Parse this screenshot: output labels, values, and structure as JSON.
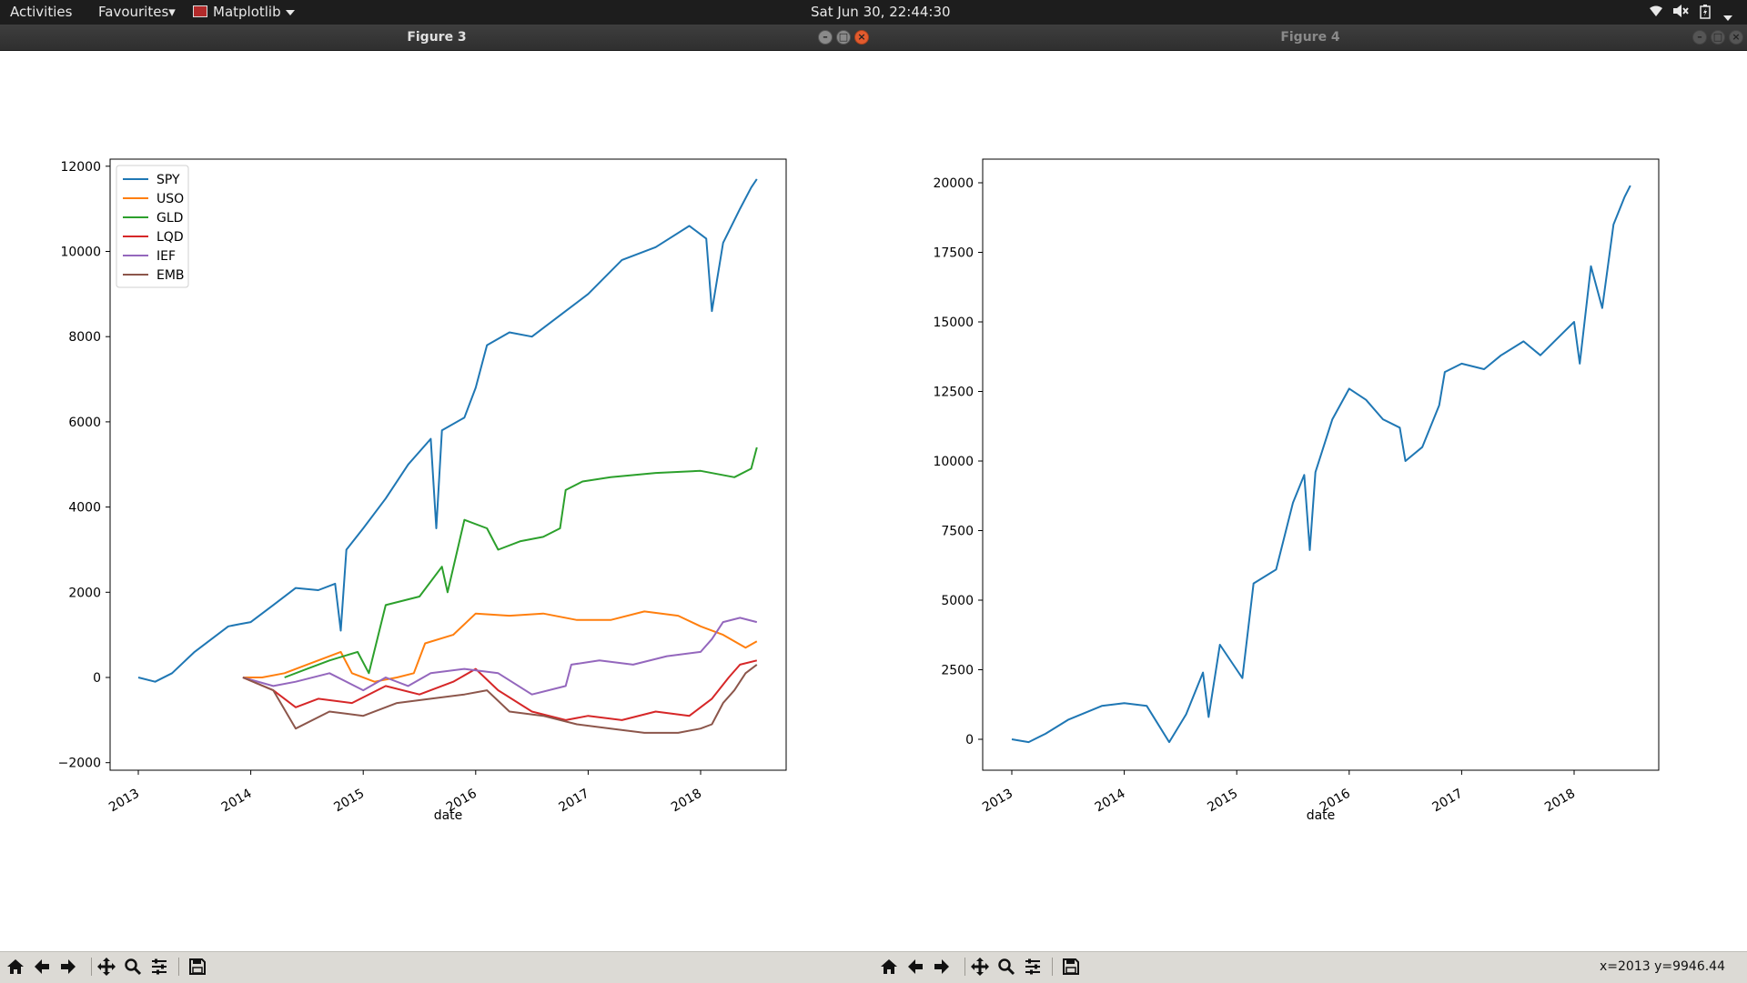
{
  "topbar": {
    "activities": "Activities",
    "favourites": "Favourites▾",
    "app_name": "Matplotlib",
    "clock": "Sat Jun 30, 22:44:30"
  },
  "windows": [
    {
      "title": "Figure 3"
    },
    {
      "title": "Figure 4"
    }
  ],
  "status": {
    "coords": "x=2013 y=9946.44"
  },
  "colors": {
    "SPY": "#1f77b4",
    "USO": "#ff7f0e",
    "GLD": "#2ca02c",
    "LQD": "#d62728",
    "IEF": "#9467bd",
    "EMB": "#8c564b"
  },
  "chart_data": [
    {
      "type": "line",
      "xlabel": "date",
      "x_ticks": [
        "2013",
        "2014",
        "2015",
        "2016",
        "2017",
        "2018"
      ],
      "ylim": [
        -2200,
        12400
      ],
      "y_ticks": [
        "−2000",
        "0",
        "2000",
        "4000",
        "6000",
        "8000",
        "10000",
        "12000"
      ],
      "y_tick_values": [
        -2000,
        0,
        2000,
        4000,
        6000,
        8000,
        10000,
        12000
      ],
      "legend_position": "top-left",
      "series": [
        {
          "name": "SPY",
          "color": "#1f77b4",
          "points": [
            [
              2013.0,
              0
            ],
            [
              2013.15,
              -100
            ],
            [
              2013.3,
              100
            ],
            [
              2013.5,
              600
            ],
            [
              2013.8,
              1200
            ],
            [
              2013.9,
              1250
            ],
            [
              2014.0,
              1300
            ],
            [
              2014.2,
              1700
            ],
            [
              2014.4,
              2100
            ],
            [
              2014.6,
              2050
            ],
            [
              2014.75,
              2200
            ],
            [
              2014.8,
              1100
            ],
            [
              2014.85,
              3000
            ],
            [
              2015.0,
              3500
            ],
            [
              2015.2,
              4200
            ],
            [
              2015.4,
              5000
            ],
            [
              2015.6,
              5600
            ],
            [
              2015.65,
              3500
            ],
            [
              2015.7,
              5800
            ],
            [
              2015.9,
              6100
            ],
            [
              2016.0,
              6800
            ],
            [
              2016.1,
              7800
            ],
            [
              2016.3,
              8100
            ],
            [
              2016.5,
              8000
            ],
            [
              2016.8,
              8600
            ],
            [
              2017.0,
              9000
            ],
            [
              2017.3,
              9800
            ],
            [
              2017.6,
              10100
            ],
            [
              2017.9,
              10600
            ],
            [
              2018.05,
              10300
            ],
            [
              2018.1,
              8600
            ],
            [
              2018.2,
              10200
            ],
            [
              2018.35,
              11000
            ],
            [
              2018.45,
              11500
            ],
            [
              2018.5,
              11700
            ]
          ]
        },
        {
          "name": "USO",
          "color": "#ff7f0e",
          "points": [
            [
              2013.93,
              0
            ],
            [
              2014.1,
              0
            ],
            [
              2014.3,
              100
            ],
            [
              2014.5,
              300
            ],
            [
              2014.8,
              600
            ],
            [
              2014.9,
              100
            ],
            [
              2015.1,
              -100
            ],
            [
              2015.3,
              0
            ],
            [
              2015.45,
              100
            ],
            [
              2015.55,
              800
            ],
            [
              2015.8,
              1000
            ],
            [
              2016.0,
              1500
            ],
            [
              2016.3,
              1450
            ],
            [
              2016.6,
              1500
            ],
            [
              2016.9,
              1350
            ],
            [
              2017.2,
              1350
            ],
            [
              2017.5,
              1550
            ],
            [
              2017.8,
              1450
            ],
            [
              2018.0,
              1200
            ],
            [
              2018.2,
              1000
            ],
            [
              2018.4,
              700
            ],
            [
              2018.5,
              850
            ]
          ]
        },
        {
          "name": "GLD",
          "color": "#2ca02c",
          "points": [
            [
              2014.3,
              0
            ],
            [
              2014.5,
              200
            ],
            [
              2014.7,
              400
            ],
            [
              2014.95,
              600
            ],
            [
              2015.05,
              100
            ],
            [
              2015.2,
              1700
            ],
            [
              2015.5,
              1900
            ],
            [
              2015.7,
              2600
            ],
            [
              2015.75,
              2000
            ],
            [
              2015.9,
              3700
            ],
            [
              2016.1,
              3500
            ],
            [
              2016.2,
              3000
            ],
            [
              2016.4,
              3200
            ],
            [
              2016.6,
              3300
            ],
            [
              2016.75,
              3500
            ],
            [
              2016.8,
              4400
            ],
            [
              2016.95,
              4600
            ],
            [
              2017.2,
              4700
            ],
            [
              2017.6,
              4800
            ],
            [
              2018.0,
              4850
            ],
            [
              2018.3,
              4700
            ],
            [
              2018.45,
              4900
            ],
            [
              2018.5,
              5400
            ]
          ]
        },
        {
          "name": "LQD",
          "color": "#d62728",
          "points": [
            [
              2013.93,
              0
            ],
            [
              2014.2,
              -300
            ],
            [
              2014.4,
              -700
            ],
            [
              2014.6,
              -500
            ],
            [
              2014.9,
              -600
            ],
            [
              2015.2,
              -200
            ],
            [
              2015.5,
              -400
            ],
            [
              2015.8,
              -100
            ],
            [
              2016.0,
              200
            ],
            [
              2016.2,
              -300
            ],
            [
              2016.5,
              -800
            ],
            [
              2016.8,
              -1000
            ],
            [
              2017.0,
              -900
            ],
            [
              2017.3,
              -1000
            ],
            [
              2017.6,
              -800
            ],
            [
              2017.9,
              -900
            ],
            [
              2018.0,
              -700
            ],
            [
              2018.1,
              -500
            ],
            [
              2018.25,
              0
            ],
            [
              2018.35,
              300
            ],
            [
              2018.5,
              400
            ]
          ]
        },
        {
          "name": "IEF",
          "color": "#9467bd",
          "points": [
            [
              2013.93,
              0
            ],
            [
              2014.2,
              -200
            ],
            [
              2014.4,
              -100
            ],
            [
              2014.7,
              100
            ],
            [
              2015.0,
              -300
            ],
            [
              2015.2,
              0
            ],
            [
              2015.4,
              -200
            ],
            [
              2015.6,
              100
            ],
            [
              2015.9,
              200
            ],
            [
              2016.2,
              100
            ],
            [
              2016.5,
              -400
            ],
            [
              2016.8,
              -200
            ],
            [
              2016.85,
              300
            ],
            [
              2017.1,
              400
            ],
            [
              2017.4,
              300
            ],
            [
              2017.7,
              500
            ],
            [
              2018.0,
              600
            ],
            [
              2018.1,
              900
            ],
            [
              2018.2,
              1300
            ],
            [
              2018.35,
              1400
            ],
            [
              2018.5,
              1300
            ]
          ]
        },
        {
          "name": "EMB",
          "color": "#8c564b",
          "points": [
            [
              2013.93,
              0
            ],
            [
              2014.2,
              -300
            ],
            [
              2014.4,
              -1200
            ],
            [
              2014.7,
              -800
            ],
            [
              2015.0,
              -900
            ],
            [
              2015.3,
              -600
            ],
            [
              2015.6,
              -500
            ],
            [
              2015.9,
              -400
            ],
            [
              2016.1,
              -300
            ],
            [
              2016.3,
              -800
            ],
            [
              2016.6,
              -900
            ],
            [
              2016.9,
              -1100
            ],
            [
              2017.2,
              -1200
            ],
            [
              2017.5,
              -1300
            ],
            [
              2017.8,
              -1300
            ],
            [
              2018.0,
              -1200
            ],
            [
              2018.1,
              -1100
            ],
            [
              2018.2,
              -600
            ],
            [
              2018.3,
              -300
            ],
            [
              2018.4,
              100
            ],
            [
              2018.5,
              300
            ]
          ]
        }
      ]
    },
    {
      "type": "line",
      "xlabel": "date",
      "x_ticks": [
        "2013",
        "2014",
        "2015",
        "2016",
        "2017",
        "2018"
      ],
      "ylim": [
        -1100,
        20900
      ],
      "y_ticks": [
        "0",
        "2500",
        "5000",
        "7500",
        "10000",
        "12500",
        "15000",
        "17500",
        "20000"
      ],
      "y_tick_values": [
        0,
        2500,
        5000,
        7500,
        10000,
        12500,
        15000,
        17500,
        20000
      ],
      "series": [
        {
          "color": "#1f77b4",
          "points": [
            [
              2013.0,
              0
            ],
            [
              2013.15,
              -100
            ],
            [
              2013.3,
              200
            ],
            [
              2013.5,
              700
            ],
            [
              2013.8,
              1200
            ],
            [
              2014.0,
              1300
            ],
            [
              2014.2,
              1200
            ],
            [
              2014.4,
              -100
            ],
            [
              2014.55,
              900
            ],
            [
              2014.7,
              2400
            ],
            [
              2014.75,
              800
            ],
            [
              2014.85,
              3400
            ],
            [
              2015.0,
              2500
            ],
            [
              2015.05,
              2200
            ],
            [
              2015.15,
              5600
            ],
            [
              2015.35,
              6100
            ],
            [
              2015.5,
              8500
            ],
            [
              2015.6,
              9500
            ],
            [
              2015.65,
              6800
            ],
            [
              2015.7,
              9600
            ],
            [
              2015.85,
              11500
            ],
            [
              2016.0,
              12600
            ],
            [
              2016.15,
              12200
            ],
            [
              2016.3,
              11500
            ],
            [
              2016.45,
              11200
            ],
            [
              2016.5,
              10000
            ],
            [
              2016.65,
              10500
            ],
            [
              2016.8,
              12000
            ],
            [
              2016.85,
              13200
            ],
            [
              2017.0,
              13500
            ],
            [
              2017.2,
              13300
            ],
            [
              2017.35,
              13800
            ],
            [
              2017.55,
              14300
            ],
            [
              2017.7,
              13800
            ],
            [
              2017.9,
              14600
            ],
            [
              2018.0,
              15000
            ],
            [
              2018.05,
              13500
            ],
            [
              2018.15,
              17000
            ],
            [
              2018.25,
              15500
            ],
            [
              2018.35,
              18500
            ],
            [
              2018.45,
              19500
            ],
            [
              2018.5,
              19900
            ]
          ]
        }
      ]
    }
  ]
}
